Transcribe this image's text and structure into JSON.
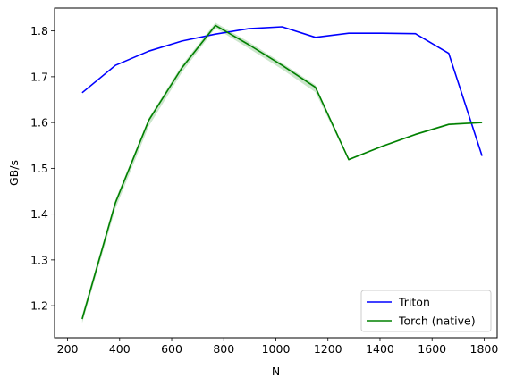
{
  "chart_data": {
    "type": "line",
    "xlabel": "N",
    "ylabel": "GB/s",
    "xlim": [
      150,
      1850
    ],
    "ylim": [
      1.13,
      1.85
    ],
    "xticks": [
      200,
      400,
      600,
      800,
      1000,
      1200,
      1400,
      1600,
      1800
    ],
    "yticks": [
      1.2,
      1.3,
      1.4,
      1.5,
      1.6,
      1.7,
      1.8
    ],
    "legend_position": "lower-right",
    "series": [
      {
        "name": "Triton",
        "color": "#0000ff",
        "x": [
          256,
          384,
          512,
          640,
          768,
          896,
          1024,
          1152,
          1280,
          1408,
          1536,
          1664,
          1792
        ],
        "y": [
          1.665,
          1.725,
          1.756,
          1.778,
          1.793,
          1.805,
          1.809,
          1.786,
          1.795,
          1.795,
          1.794,
          1.751,
          1.527
        ]
      },
      {
        "name": "Torch (native)",
        "color": "#008000",
        "x": [
          256,
          384,
          512,
          640,
          768,
          896,
          1024,
          1152,
          1280,
          1408,
          1536,
          1664,
          1792
        ],
        "y": [
          1.171,
          1.425,
          1.605,
          1.72,
          1.812,
          1.77,
          1.725,
          1.677,
          1.519,
          1.548,
          1.574,
          1.596,
          1.6
        ],
        "band_low": [
          1.162,
          1.412,
          1.592,
          1.71,
          1.806,
          1.762,
          1.716,
          1.666,
          1.517,
          1.546,
          1.572,
          1.594,
          1.598
        ],
        "band_high": [
          1.18,
          1.432,
          1.61,
          1.726,
          1.818,
          1.776,
          1.73,
          1.682,
          1.521,
          1.55,
          1.576,
          1.598,
          1.602
        ]
      }
    ]
  }
}
